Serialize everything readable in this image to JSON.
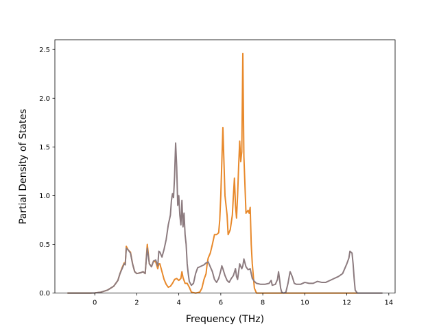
{
  "chart_data": {
    "type": "line",
    "xlabel": "Frequency (THz)",
    "ylabel": "Partial Density of States",
    "xlim": [
      -1.9,
      14.3
    ],
    "ylim": [
      0,
      2.6
    ],
    "xticks": [
      0,
      2,
      4,
      6,
      8,
      10,
      12,
      14
    ],
    "yticks": [
      0.0,
      0.5,
      1.0,
      1.5,
      2.0,
      2.5
    ],
    "xtick_labels": [
      "0",
      "2",
      "4",
      "6",
      "8",
      "10",
      "12",
      "14"
    ],
    "ytick_labels": [
      "0.0",
      "0.5",
      "1.0",
      "1.5",
      "2.0",
      "2.5"
    ],
    "grid": false,
    "legend": "none",
    "series": [
      {
        "color": "#e8892b",
        "points": [
          [
            -1.3,
            0
          ],
          [
            -0.2,
            0
          ],
          [
            0,
            0.002
          ],
          [
            0.3,
            0.01
          ],
          [
            0.6,
            0.03
          ],
          [
            0.9,
            0.07
          ],
          [
            1.1,
            0.13
          ],
          [
            1.2,
            0.2
          ],
          [
            1.3,
            0.26
          ],
          [
            1.4,
            0.31
          ],
          [
            1.45,
            0.29
          ],
          [
            1.5,
            0.48
          ],
          [
            1.6,
            0.44
          ],
          [
            1.7,
            0.42
          ],
          [
            1.8,
            0.3
          ],
          [
            1.9,
            0.22
          ],
          [
            2.0,
            0.2
          ],
          [
            2.2,
            0.21
          ],
          [
            2.3,
            0.22
          ],
          [
            2.4,
            0.2
          ],
          [
            2.45,
            0.35
          ],
          [
            2.5,
            0.5
          ],
          [
            2.55,
            0.4
          ],
          [
            2.6,
            0.3
          ],
          [
            2.7,
            0.27
          ],
          [
            2.8,
            0.33
          ],
          [
            2.9,
            0.32
          ],
          [
            3.0,
            0.25
          ],
          [
            3.05,
            0.3
          ],
          [
            3.1,
            0.3
          ],
          [
            3.2,
            0.22
          ],
          [
            3.3,
            0.14
          ],
          [
            3.4,
            0.09
          ],
          [
            3.5,
            0.06
          ],
          [
            3.6,
            0.07
          ],
          [
            3.7,
            0.1
          ],
          [
            3.8,
            0.14
          ],
          [
            3.9,
            0.15
          ],
          [
            4.0,
            0.13
          ],
          [
            4.1,
            0.15
          ],
          [
            4.15,
            0.22
          ],
          [
            4.2,
            0.16
          ],
          [
            4.3,
            0.1
          ],
          [
            4.4,
            0.1
          ],
          [
            4.5,
            0.06
          ],
          [
            4.6,
            0.01
          ],
          [
            4.8,
            0
          ],
          [
            5.0,
            0.01
          ],
          [
            5.1,
            0.05
          ],
          [
            5.2,
            0.14
          ],
          [
            5.3,
            0.2
          ],
          [
            5.35,
            0.3
          ],
          [
            5.4,
            0.36
          ],
          [
            5.5,
            0.41
          ],
          [
            5.6,
            0.5
          ],
          [
            5.7,
            0.6
          ],
          [
            5.8,
            0.6
          ],
          [
            5.9,
            0.62
          ],
          [
            5.95,
            0.75
          ],
          [
            6.0,
            1.0
          ],
          [
            6.05,
            1.35
          ],
          [
            6.1,
            1.7
          ],
          [
            6.15,
            1.35
          ],
          [
            6.2,
            1.0
          ],
          [
            6.3,
            0.8
          ],
          [
            6.35,
            0.6
          ],
          [
            6.45,
            0.65
          ],
          [
            6.55,
            0.8
          ],
          [
            6.6,
            1.0
          ],
          [
            6.65,
            1.18
          ],
          [
            6.7,
            0.9
          ],
          [
            6.75,
            0.77
          ],
          [
            6.8,
            1.0
          ],
          [
            6.85,
            1.3
          ],
          [
            6.9,
            1.56
          ],
          [
            6.95,
            1.35
          ],
          [
            7.0,
            1.45
          ],
          [
            7.05,
            2.46
          ],
          [
            7.1,
            1.4
          ],
          [
            7.2,
            0.82
          ],
          [
            7.3,
            0.85
          ],
          [
            7.35,
            0.82
          ],
          [
            7.4,
            0.88
          ],
          [
            7.45,
            0.5
          ],
          [
            7.5,
            0.3
          ],
          [
            7.6,
            0.05
          ],
          [
            7.7,
            0
          ],
          [
            12.5,
            0
          ]
        ]
      },
      {
        "color": "#8c7b7f",
        "points": [
          [
            -1.3,
            0
          ],
          [
            -0.2,
            0
          ],
          [
            0,
            0.002
          ],
          [
            0.3,
            0.01
          ],
          [
            0.6,
            0.03
          ],
          [
            0.9,
            0.07
          ],
          [
            1.1,
            0.13
          ],
          [
            1.2,
            0.2
          ],
          [
            1.3,
            0.25
          ],
          [
            1.4,
            0.3
          ],
          [
            1.45,
            0.29
          ],
          [
            1.5,
            0.46
          ],
          [
            1.6,
            0.44
          ],
          [
            1.7,
            0.41
          ],
          [
            1.8,
            0.3
          ],
          [
            1.9,
            0.22
          ],
          [
            2.0,
            0.2
          ],
          [
            2.2,
            0.21
          ],
          [
            2.3,
            0.22
          ],
          [
            2.4,
            0.2
          ],
          [
            2.45,
            0.34
          ],
          [
            2.5,
            0.46
          ],
          [
            2.55,
            0.38
          ],
          [
            2.6,
            0.3
          ],
          [
            2.7,
            0.27
          ],
          [
            2.8,
            0.33
          ],
          [
            2.9,
            0.34
          ],
          [
            3.0,
            0.28
          ],
          [
            3.05,
            0.43
          ],
          [
            3.1,
            0.42
          ],
          [
            3.2,
            0.37
          ],
          [
            3.3,
            0.45
          ],
          [
            3.4,
            0.55
          ],
          [
            3.5,
            0.7
          ],
          [
            3.6,
            0.8
          ],
          [
            3.65,
            0.95
          ],
          [
            3.7,
            1.02
          ],
          [
            3.75,
            0.98
          ],
          [
            3.8,
            1.2
          ],
          [
            3.85,
            1.54
          ],
          [
            3.9,
            1.3
          ],
          [
            3.95,
            0.9
          ],
          [
            4.0,
            1.0
          ],
          [
            4.05,
            0.8
          ],
          [
            4.1,
            0.7
          ],
          [
            4.15,
            0.95
          ],
          [
            4.2,
            0.68
          ],
          [
            4.25,
            0.82
          ],
          [
            4.3,
            0.6
          ],
          [
            4.35,
            0.5
          ],
          [
            4.4,
            0.3
          ],
          [
            4.45,
            0.2
          ],
          [
            4.5,
            0.12
          ],
          [
            4.6,
            0.08
          ],
          [
            4.7,
            0.1
          ],
          [
            4.8,
            0.2
          ],
          [
            4.9,
            0.26
          ],
          [
            5.0,
            0.27
          ],
          [
            5.2,
            0.29
          ],
          [
            5.3,
            0.31
          ],
          [
            5.4,
            0.32
          ],
          [
            5.5,
            0.27
          ],
          [
            5.6,
            0.22
          ],
          [
            5.7,
            0.14
          ],
          [
            5.8,
            0.11
          ],
          [
            5.9,
            0.15
          ],
          [
            6.0,
            0.23
          ],
          [
            6.05,
            0.28
          ],
          [
            6.1,
            0.25
          ],
          [
            6.2,
            0.18
          ],
          [
            6.3,
            0.13
          ],
          [
            6.4,
            0.11
          ],
          [
            6.5,
            0.15
          ],
          [
            6.6,
            0.18
          ],
          [
            6.7,
            0.25
          ],
          [
            6.75,
            0.17
          ],
          [
            6.8,
            0.14
          ],
          [
            6.9,
            0.3
          ],
          [
            7.0,
            0.25
          ],
          [
            7.05,
            0.28
          ],
          [
            7.1,
            0.35
          ],
          [
            7.2,
            0.27
          ],
          [
            7.3,
            0.24
          ],
          [
            7.4,
            0.25
          ],
          [
            7.5,
            0.15
          ],
          [
            7.6,
            0.12
          ],
          [
            7.7,
            0.1
          ],
          [
            7.9,
            0.09
          ],
          [
            8.1,
            0.09
          ],
          [
            8.3,
            0.1
          ],
          [
            8.4,
            0.13
          ],
          [
            8.45,
            0.08
          ],
          [
            8.6,
            0.09
          ],
          [
            8.7,
            0.14
          ],
          [
            8.75,
            0.22
          ],
          [
            8.8,
            0.14
          ],
          [
            8.85,
            0.05
          ],
          [
            8.9,
            0.01
          ],
          [
            9.0,
            0
          ],
          [
            9.1,
            0.01
          ],
          [
            9.2,
            0.1
          ],
          [
            9.3,
            0.22
          ],
          [
            9.4,
            0.17
          ],
          [
            9.5,
            0.1
          ],
          [
            9.6,
            0.09
          ],
          [
            9.8,
            0.09
          ],
          [
            10.0,
            0.11
          ],
          [
            10.2,
            0.1
          ],
          [
            10.4,
            0.1
          ],
          [
            10.6,
            0.12
          ],
          [
            10.8,
            0.11
          ],
          [
            11.0,
            0.11
          ],
          [
            11.2,
            0.13
          ],
          [
            11.4,
            0.15
          ],
          [
            11.6,
            0.17
          ],
          [
            11.8,
            0.2
          ],
          [
            11.9,
            0.25
          ],
          [
            12.0,
            0.3
          ],
          [
            12.1,
            0.36
          ],
          [
            12.15,
            0.43
          ],
          [
            12.25,
            0.41
          ],
          [
            12.3,
            0.3
          ],
          [
            12.35,
            0.15
          ],
          [
            12.4,
            0.03
          ],
          [
            12.5,
            0
          ],
          [
            13.7,
            0
          ]
        ]
      }
    ]
  }
}
